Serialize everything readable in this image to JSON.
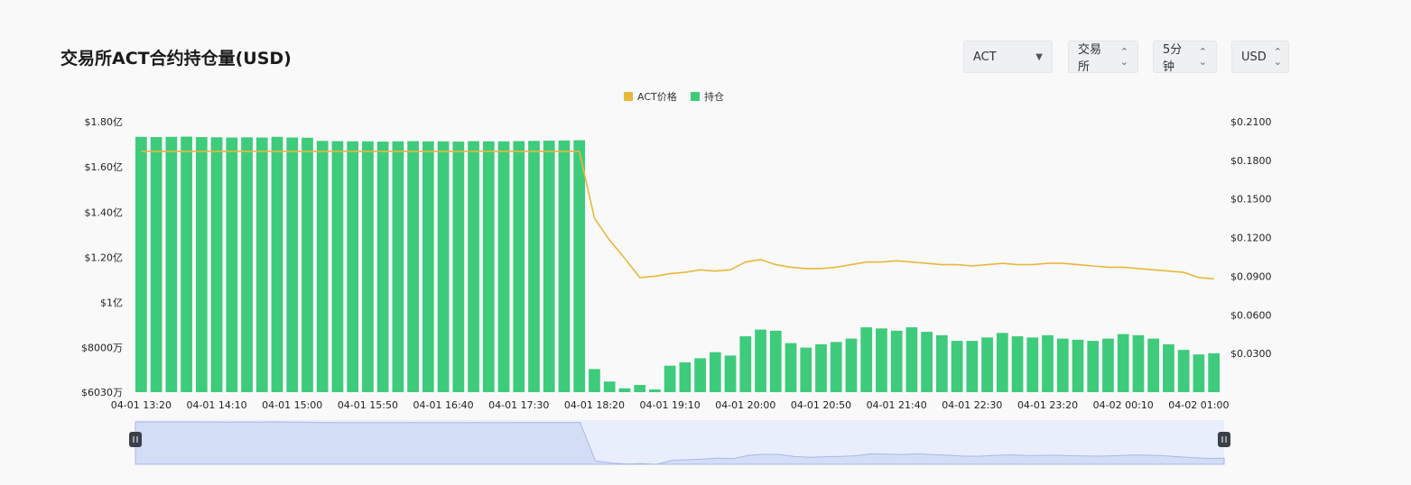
{
  "title": "交易所ACT合约持仓量(USD)",
  "controls": {
    "coin": "ACT",
    "exchange": "交易所",
    "interval": "5分钟",
    "currency": "USD"
  },
  "legend": [
    {
      "name": "ACT价格",
      "color": "#e8b83a"
    },
    {
      "name": "持仓",
      "color": "#3ecb7c"
    }
  ],
  "chart_data": {
    "type": "bar",
    "x": [
      "04-01 13:20",
      "04-01 13:30",
      "04-01 13:40",
      "04-01 13:50",
      "04-01 14:00",
      "04-01 14:10",
      "04-01 14:20",
      "04-01 14:30",
      "04-01 14:40",
      "04-01 14:50",
      "04-01 15:00",
      "04-01 15:10",
      "04-01 15:20",
      "04-01 15:30",
      "04-01 15:40",
      "04-01 15:50",
      "04-01 16:00",
      "04-01 16:10",
      "04-01 16:20",
      "04-01 16:30",
      "04-01 16:40",
      "04-01 16:50",
      "04-01 17:00",
      "04-01 17:10",
      "04-01 17:20",
      "04-01 17:30",
      "04-01 17:40",
      "04-01 17:50",
      "04-01 18:00",
      "04-01 18:10",
      "04-01 18:20",
      "04-01 18:30",
      "04-01 18:40",
      "04-01 18:50",
      "04-01 19:00",
      "04-01 19:10",
      "04-01 19:20",
      "04-01 19:30",
      "04-01 19:40",
      "04-01 19:50",
      "04-01 20:00",
      "04-01 20:10",
      "04-01 20:20",
      "04-01 20:30",
      "04-01 20:40",
      "04-01 20:50",
      "04-01 21:00",
      "04-01 21:10",
      "04-01 21:20",
      "04-01 21:30",
      "04-01 21:40",
      "04-01 21:50",
      "04-01 22:00",
      "04-01 22:10",
      "04-01 22:20",
      "04-01 22:30",
      "04-01 22:40",
      "04-01 22:50",
      "04-01 23:00",
      "04-01 23:10",
      "04-01 23:20",
      "04-01 23:30",
      "04-01 23:40",
      "04-01 23:50",
      "04-02 00:00",
      "04-02 00:10",
      "04-02 00:20",
      "04-02 00:30",
      "04-02 00:40",
      "04-02 00:50",
      "04-02 01:00",
      "04-02 01:10"
    ],
    "x_ticks": [
      "04-01 13:20",
      "04-01 14:10",
      "04-01 15:00",
      "04-01 15:50",
      "04-01 16:40",
      "04-01 17:30",
      "04-01 18:20",
      "04-01 19:10",
      "04-01 20:00",
      "04-01 20:50",
      "04-01 21:40",
      "04-01 22:30",
      "04-01 23:20",
      "04-02 00:10",
      "04-02 01:00"
    ],
    "y_left_ticks": [
      "$1.80亿",
      "$1.60亿",
      "$1.40亿",
      "$1.20亿",
      "$1亿",
      "$8000万",
      "$6030万"
    ],
    "y_left_tick_values": [
      180000000,
      160000000,
      140000000,
      120000000,
      100000000,
      80000000,
      60300000
    ],
    "y_right_ticks": [
      "$0.2100",
      "$0.1800",
      "$0.1500",
      "$0.1200",
      "$0.0900",
      "$0.0600",
      "$0.0300"
    ],
    "y_right_tick_values": [
      0.21,
      0.18,
      0.15,
      0.12,
      0.09,
      0.06,
      0.03
    ],
    "ylim_left": [
      60300000,
      180000000
    ],
    "ylim_right": [
      0,
      0.21
    ],
    "series": [
      {
        "name": "持仓",
        "type": "bar",
        "axis": "left",
        "values": [
          173300000,
          173200000,
          173300000,
          173400000,
          173200000,
          173100000,
          173000000,
          173100000,
          173000000,
          173300000,
          173000000,
          172900000,
          171500000,
          171400000,
          171300000,
          171300000,
          171200000,
          171300000,
          171400000,
          171300000,
          171300000,
          171200000,
          171400000,
          171300000,
          171300000,
          171400000,
          171500000,
          171600000,
          171700000,
          171800000,
          70500000,
          65000000,
          62000000,
          63500000,
          61500000,
          72000000,
          73500000,
          75300000,
          78000000,
          76500000,
          85000000,
          88000000,
          87500000,
          82000000,
          80000000,
          81500000,
          82500000,
          84000000,
          89000000,
          88500000,
          87500000,
          89000000,
          87000000,
          85500000,
          83000000,
          83000000,
          84500000,
          86500000,
          85000000,
          84500000,
          85500000,
          84000000,
          83500000,
          83000000,
          84000000,
          86000000,
          85500000,
          84000000,
          81500000,
          79000000,
          77000000,
          77500000
        ],
        "color": "#3ecb7c"
      },
      {
        "name": "ACT价格",
        "type": "line",
        "axis": "right",
        "values": [
          0.187,
          0.187,
          0.187,
          0.187,
          0.187,
          0.187,
          0.187,
          0.187,
          0.187,
          0.187,
          0.187,
          0.187,
          0.187,
          0.187,
          0.187,
          0.187,
          0.187,
          0.187,
          0.187,
          0.187,
          0.187,
          0.187,
          0.187,
          0.187,
          0.187,
          0.187,
          0.187,
          0.187,
          0.187,
          0.187,
          0.135,
          0.118,
          0.104,
          0.089,
          0.09,
          0.092,
          0.093,
          0.095,
          0.094,
          0.095,
          0.101,
          0.103,
          0.099,
          0.097,
          0.096,
          0.096,
          0.097,
          0.099,
          0.101,
          0.101,
          0.102,
          0.101,
          0.1,
          0.099,
          0.099,
          0.098,
          0.099,
          0.1,
          0.099,
          0.099,
          0.1,
          0.1,
          0.099,
          0.098,
          0.097,
          0.097,
          0.096,
          0.095,
          0.094,
          0.093,
          0.089,
          0.088
        ],
        "color": "#e8b83a"
      }
    ],
    "grid": false,
    "legend_position": "top-center"
  }
}
